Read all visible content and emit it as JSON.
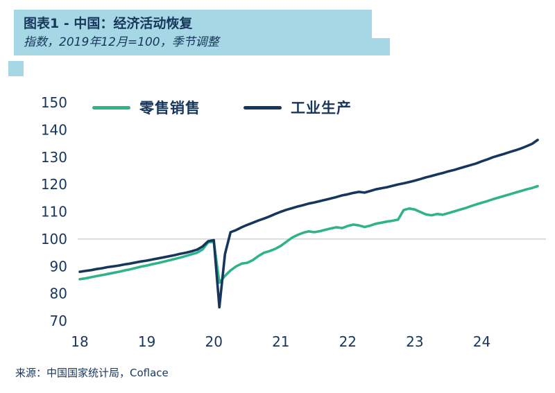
{
  "header": {
    "title": "图表1 - 中国：经济活动恢复",
    "subtitle": "指数，2019年12月=100，季节调整"
  },
  "source": "来源：中国国家统计局，Coflace",
  "colors": {
    "banner_bg": "#a6d7e4",
    "navy": "#17365c",
    "green": "#2fb38a",
    "gridline": "#c9c9c9",
    "background": "#ffffff"
  },
  "chart_data": {
    "type": "line",
    "title": "中国：经济活动恢复",
    "subtitle": "指数，2019年12月=100，季节调整",
    "x_unit": "month",
    "x_start": "2018-01",
    "x_tick_labels": [
      "18",
      "19",
      "20",
      "21",
      "22",
      "23",
      "24"
    ],
    "x_tick_month_indices": [
      0,
      12,
      24,
      36,
      48,
      60,
      72
    ],
    "ylim": [
      70,
      150
    ],
    "y_ticks": [
      150,
      140,
      130,
      120,
      110,
      100,
      90,
      80,
      70
    ],
    "gridline_at": 100,
    "grid": "only-100-line",
    "legend_position": "top",
    "series": [
      {
        "id": "retail-sales",
        "name": "零售销售",
        "color_key": "green",
        "values": [
          85.3,
          85.6,
          86.0,
          86.4,
          86.8,
          87.2,
          87.6,
          88.0,
          88.5,
          88.9,
          89.4,
          89.9,
          90.3,
          90.8,
          91.2,
          91.7,
          92.2,
          92.7,
          93.2,
          93.8,
          94.4,
          95.0,
          96.2,
          98.8,
          99.0,
          84.0,
          86.5,
          88.5,
          90.0,
          91.0,
          91.3,
          92.3,
          93.8,
          95.0,
          95.6,
          96.4,
          97.5,
          99.0,
          100.5,
          101.5,
          102.3,
          102.8,
          102.5,
          102.9,
          103.4,
          103.9,
          104.3,
          104.0,
          104.8,
          105.3,
          105.0,
          104.4,
          104.9,
          105.6,
          106.0,
          106.4,
          106.7,
          107.1,
          110.6,
          111.2,
          110.8,
          109.9,
          109.0,
          108.7,
          109.2,
          108.9,
          109.5,
          110.1,
          110.7,
          111.3,
          112.0,
          112.7,
          113.3,
          113.9,
          114.6,
          115.2,
          115.8,
          116.4,
          117.0,
          117.6,
          118.2,
          118.7,
          119.4
        ]
      },
      {
        "id": "industrial-production",
        "name": "工业生产",
        "color_key": "navy",
        "values": [
          88.0,
          88.3,
          88.6,
          89.0,
          89.3,
          89.7,
          90.0,
          90.3,
          90.7,
          91.0,
          91.4,
          91.8,
          92.1,
          92.5,
          92.9,
          93.3,
          93.7,
          94.1,
          94.6,
          95.0,
          95.5,
          96.1,
          97.3,
          99.2,
          99.6,
          75.0,
          94.5,
          102.5,
          103.3,
          104.3,
          105.2,
          106.0,
          106.8,
          107.5,
          108.3,
          109.2,
          110.0,
          110.7,
          111.3,
          111.9,
          112.4,
          113.0,
          113.4,
          113.9,
          114.4,
          114.9,
          115.4,
          116.0,
          116.4,
          116.9,
          117.3,
          117.0,
          117.6,
          118.2,
          118.6,
          119.0,
          119.5,
          120.0,
          120.4,
          120.9,
          121.4,
          122.0,
          122.6,
          123.1,
          123.7,
          124.2,
          124.8,
          125.3,
          125.9,
          126.5,
          127.1,
          127.7,
          128.5,
          129.2,
          130.0,
          130.6,
          131.2,
          131.9,
          132.5,
          133.2,
          134.0,
          134.9,
          136.3
        ]
      }
    ]
  }
}
